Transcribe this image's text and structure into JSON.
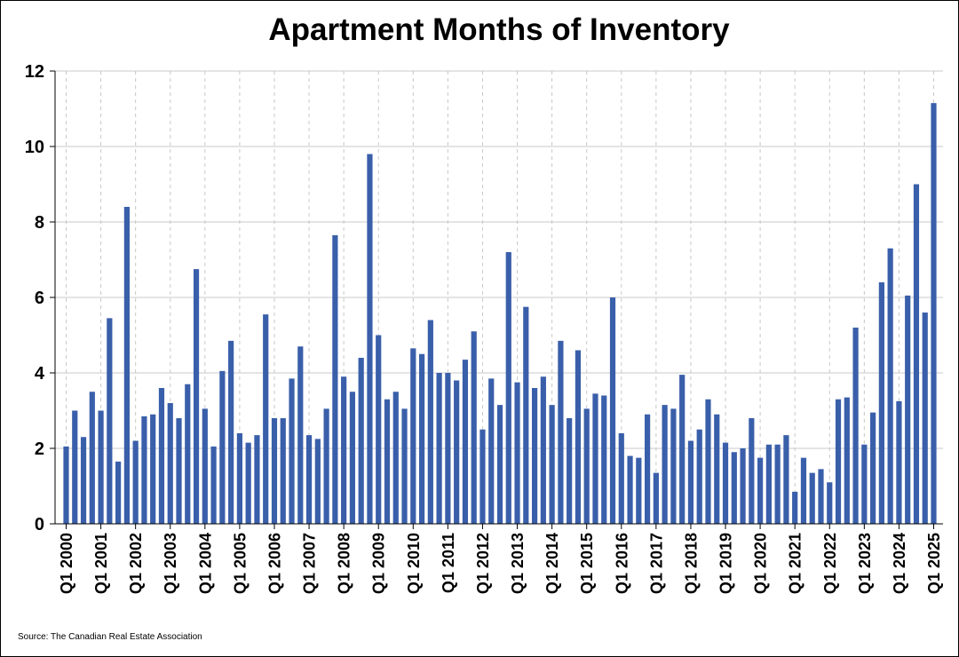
{
  "chart_data": {
    "type": "bar",
    "title": "Apartment Months of Inventory",
    "xlabel": "",
    "ylabel": "",
    "ylim": [
      0,
      12
    ],
    "yticks": [
      0,
      2,
      4,
      6,
      8,
      10,
      12
    ],
    "grid": true,
    "bar_color": "#3A5FAA",
    "grid_color": "#C8C8C8",
    "categories": [
      "Q1 2000",
      "Q2 2000",
      "Q3 2000",
      "Q4 2000",
      "Q1 2001",
      "Q2 2001",
      "Q3 2001",
      "Q4 2001",
      "Q1 2002",
      "Q2 2002",
      "Q3 2002",
      "Q4 2002",
      "Q1 2003",
      "Q2 2003",
      "Q3 2003",
      "Q4 2003",
      "Q1 2004",
      "Q2 2004",
      "Q3 2004",
      "Q4 2004",
      "Q1 2005",
      "Q2 2005",
      "Q3 2005",
      "Q4 2005",
      "Q1 2006",
      "Q2 2006",
      "Q3 2006",
      "Q4 2006",
      "Q1 2007",
      "Q2 2007",
      "Q3 2007",
      "Q4 2007",
      "Q1 2008",
      "Q2 2008",
      "Q3 2008",
      "Q4 2008",
      "Q1 2009",
      "Q2 2009",
      "Q3 2009",
      "Q4 2009",
      "Q1 2010",
      "Q2 2010",
      "Q3 2010",
      "Q4 2010",
      "Q1 2011",
      "Q2 2011",
      "Q3 2011",
      "Q4 2011",
      "Q1 2012",
      "Q2 2012",
      "Q3 2012",
      "Q4 2012",
      "Q1 2013",
      "Q2 2013",
      "Q3 2013",
      "Q4 2013",
      "Q1 2014",
      "Q2 2014",
      "Q3 2014",
      "Q4 2014",
      "Q1 2015",
      "Q2 2015",
      "Q3 2015",
      "Q4 2015",
      "Q1 2016",
      "Q2 2016",
      "Q3 2016",
      "Q4 2016",
      "Q1 2017",
      "Q2 2017",
      "Q3 2017",
      "Q4 2017",
      "Q1 2018",
      "Q2 2018",
      "Q3 2018",
      "Q4 2018",
      "Q1 2019",
      "Q2 2019",
      "Q3 2019",
      "Q4 2019",
      "Q1 2020",
      "Q2 2020",
      "Q3 2020",
      "Q4 2020",
      "Q1 2021",
      "Q2 2021",
      "Q3 2021",
      "Q4 2021",
      "Q1 2022",
      "Q2 2022",
      "Q3 2022",
      "Q4 2022",
      "Q1 2023",
      "Q2 2023",
      "Q3 2023",
      "Q4 2023",
      "Q1 2024",
      "Q2 2024",
      "Q3 2024",
      "Q4 2024",
      "Q1 2025"
    ],
    "tick_labels": [
      "Q1 2000",
      "Q1 2001",
      "Q1 2002",
      "Q1 2003",
      "Q1 2004",
      "Q1 2005",
      "Q1 2006",
      "Q1 2007",
      "Q1 2008",
      "Q1 2009",
      "Q1 2010",
      "Q1 2011",
      "Q1 2012",
      "Q1 2013",
      "Q1 2014",
      "Q1 2015",
      "Q1 2016",
      "Q1 2017",
      "Q1 2018",
      "Q1 2019",
      "Q1 2020",
      "Q1 2021",
      "Q1 2022",
      "Q1 2023",
      "Q1 2024",
      "Q1 2025"
    ],
    "values": [
      2.05,
      3.0,
      2.3,
      3.5,
      3.0,
      5.45,
      1.65,
      8.4,
      2.2,
      2.85,
      2.9,
      3.6,
      3.2,
      2.8,
      3.7,
      6.75,
      3.05,
      2.05,
      4.05,
      4.85,
      2.4,
      2.15,
      2.35,
      5.55,
      2.8,
      2.8,
      3.85,
      4.7,
      2.35,
      2.25,
      3.05,
      7.65,
      3.9,
      3.5,
      4.4,
      9.8,
      5.0,
      3.3,
      3.5,
      3.05,
      4.65,
      4.5,
      5.4,
      4.0,
      4.0,
      3.8,
      4.35,
      5.1,
      2.5,
      3.85,
      3.15,
      7.2,
      3.75,
      5.75,
      3.6,
      3.9,
      3.15,
      4.85,
      2.8,
      4.6,
      3.05,
      3.45,
      3.4,
      6.0,
      2.4,
      1.8,
      1.75,
      2.9,
      1.35,
      3.15,
      3.05,
      3.95,
      2.2,
      2.5,
      3.3,
      2.9,
      2.15,
      1.9,
      2.0,
      2.8,
      1.75,
      2.1,
      2.1,
      2.35,
      0.85,
      1.75,
      1.35,
      1.45,
      1.1,
      3.3,
      3.35,
      5.2,
      2.1,
      2.95,
      6.4,
      7.3,
      3.25,
      6.05,
      9.0,
      5.6,
      11.15
    ]
  },
  "source": "Source: The Canadian Real Estate Association"
}
